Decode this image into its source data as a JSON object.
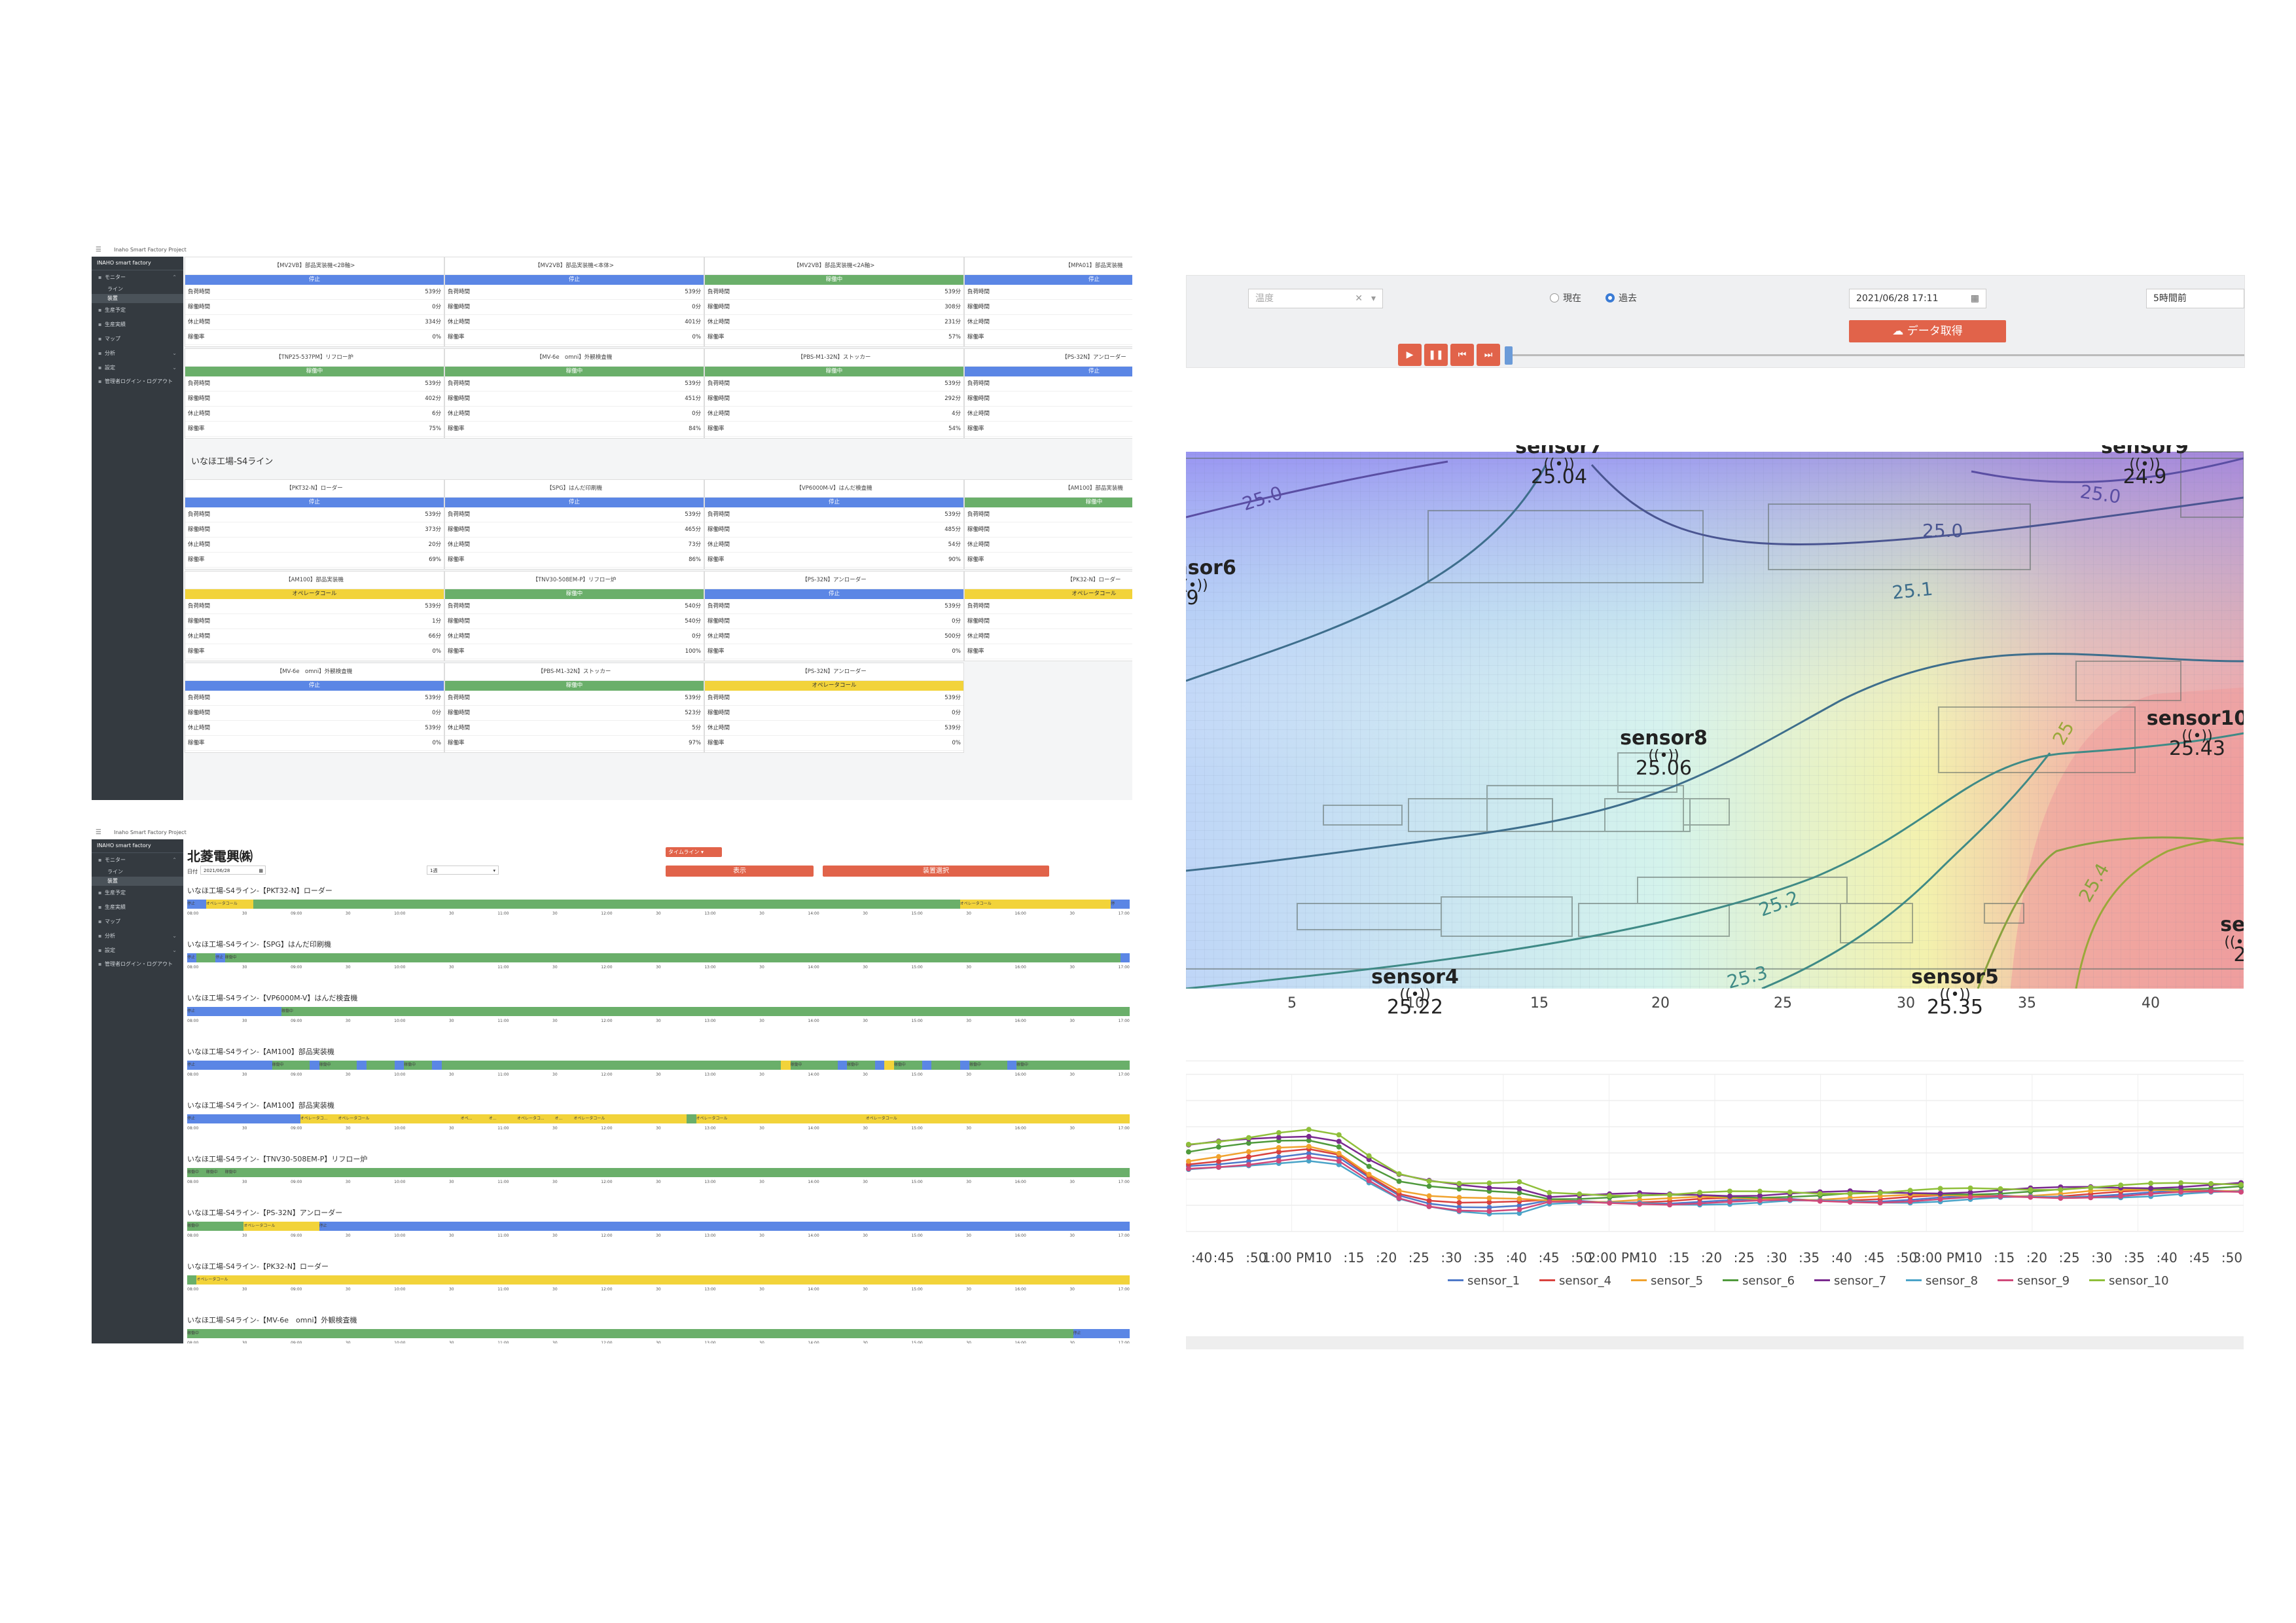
{
  "window1": {
    "title": "Inaho Smart Factory Project",
    "brand": "INAHO smart factory",
    "sidebar": [
      {
        "label": "モニター",
        "icon": "monitor-icon",
        "children": [
          {
            "label": "ライン"
          },
          {
            "label": "装置",
            "active": true
          }
        ]
      },
      {
        "label": "生産予定",
        "icon": "calendar-icon"
      },
      {
        "label": "生産実績",
        "icon": "chart-icon"
      },
      {
        "label": "マップ",
        "icon": "map-icon"
      },
      {
        "label": "分析",
        "icon": "analysis-icon"
      },
      {
        "label": "設定",
        "icon": "home-icon"
      },
      {
        "label": "管理者ログイン・ログアウト",
        "icon": "lock-icon"
      }
    ],
    "section_title": "いなほ工場-S4ライン",
    "cards_top": [
      {
        "name": "【MV2VB】部品実装機<2B軸>",
        "status": "停止",
        "kind": "stop",
        "rows": [
          [
            "負荷時間",
            "539分"
          ],
          [
            "稼働時間",
            "0分"
          ],
          [
            "休止時間",
            "334分"
          ],
          [
            "稼働率",
            "0%"
          ]
        ]
      },
      {
        "name": "【MV2VB】部品実装機<本体>",
        "status": "停止",
        "kind": "stop",
        "rows": [
          [
            "負荷時間",
            "539分"
          ],
          [
            "稼働時間",
            "0分"
          ],
          [
            "休止時間",
            "401分"
          ],
          [
            "稼働率",
            "0%"
          ]
        ]
      },
      {
        "name": "【MV2VB】部品実装機<2A軸>",
        "status": "稼働中",
        "kind": "run",
        "rows": [
          [
            "負荷時間",
            "539分"
          ],
          [
            "稼働時間",
            "308分"
          ],
          [
            "休止時間",
            "231分"
          ],
          [
            "稼働率",
            "57%"
          ]
        ]
      },
      {
        "name": "【MPA01】部品実装機",
        "status": "停止",
        "kind": "stop",
        "rows": [
          [
            "負荷時間",
            ""
          ],
          [
            "稼働時間",
            ""
          ],
          [
            "休止時間",
            ""
          ],
          [
            "稼働率",
            ""
          ]
        ]
      },
      {
        "name": "【TNP25-537PM】リフロー炉",
        "status": "稼働中",
        "kind": "run",
        "rows": [
          [
            "負荷時間",
            "539分"
          ],
          [
            "稼働時間",
            "402分"
          ],
          [
            "休止時間",
            "6分"
          ],
          [
            "稼働率",
            "75%"
          ]
        ]
      },
      {
        "name": "【MV-6e　omni】外観検査機",
        "status": "稼働中",
        "kind": "run",
        "rows": [
          [
            "負荷時間",
            "539分"
          ],
          [
            "稼働時間",
            "451分"
          ],
          [
            "休止時間",
            "0分"
          ],
          [
            "稼働率",
            "84%"
          ]
        ]
      },
      {
        "name": "【PBS-M1-32N】ストッカー",
        "status": "稼働中",
        "kind": "run",
        "rows": [
          [
            "負荷時間",
            "539分"
          ],
          [
            "稼働時間",
            "292分"
          ],
          [
            "休止時間",
            "4分"
          ],
          [
            "稼働率",
            "54%"
          ]
        ]
      },
      {
        "name": "【PS-32N】アンローダー",
        "status": "停止",
        "kind": "stop",
        "rows": [
          [
            "負荷時間",
            ""
          ],
          [
            "稼働時間",
            ""
          ],
          [
            "休止時間",
            ""
          ],
          [
            "稼働率",
            ""
          ]
        ]
      }
    ],
    "cards_bottom": [
      {
        "name": "【PKT32-N】ローダー",
        "status": "停止",
        "kind": "stop",
        "rows": [
          [
            "負荷時間",
            "539分"
          ],
          [
            "稼働時間",
            "373分"
          ],
          [
            "休止時間",
            "20分"
          ],
          [
            "稼働率",
            "69%"
          ]
        ]
      },
      {
        "name": "【SPG】はんだ印刷機",
        "status": "停止",
        "kind": "stop",
        "rows": [
          [
            "負荷時間",
            "539分"
          ],
          [
            "稼働時間",
            "465分"
          ],
          [
            "休止時間",
            "73分"
          ],
          [
            "稼働率",
            "86%"
          ]
        ]
      },
      {
        "name": "【VP6000M-V】はんだ検査機",
        "status": "停止",
        "kind": "stop",
        "rows": [
          [
            "負荷時間",
            "539分"
          ],
          [
            "稼働時間",
            "485分"
          ],
          [
            "休止時間",
            "54分"
          ],
          [
            "稼働率",
            "90%"
          ]
        ]
      },
      {
        "name": "【AM100】部品実装機",
        "status": "稼働中",
        "kind": "run",
        "rows": [
          [
            "負荷時間",
            ""
          ],
          [
            "稼働時間",
            ""
          ],
          [
            "休止時間",
            ""
          ],
          [
            "稼働率",
            ""
          ]
        ]
      },
      {
        "name": "【AM100】部品実装機",
        "status": "オペレータコール",
        "kind": "op",
        "rows": [
          [
            "負荷時間",
            "539分"
          ],
          [
            "稼働時間",
            "1分"
          ],
          [
            "休止時間",
            "66分"
          ],
          [
            "稼働率",
            "0%"
          ]
        ]
      },
      {
        "name": "【TNV30-508EM-P】リフロー炉",
        "status": "稼働中",
        "kind": "run",
        "rows": [
          [
            "負荷時間",
            "540分"
          ],
          [
            "稼働時間",
            "540分"
          ],
          [
            "休止時間",
            "0分"
          ],
          [
            "稼働率",
            "100%"
          ]
        ]
      },
      {
        "name": "【PS-32N】アンローダー",
        "status": "停止",
        "kind": "stop",
        "rows": [
          [
            "負荷時間",
            "539分"
          ],
          [
            "稼働時間",
            "0分"
          ],
          [
            "休止時間",
            "500分"
          ],
          [
            "稼働率",
            "0%"
          ]
        ]
      },
      {
        "name": "【PK32-N】ローダー",
        "status": "オペレータコール",
        "kind": "op",
        "rows": [
          [
            "負荷時間",
            ""
          ],
          [
            "稼働時間",
            ""
          ],
          [
            "休止時間",
            ""
          ],
          [
            "稼働率",
            ""
          ]
        ]
      },
      {
        "name": "【MV-6e　omni】外観検査機",
        "status": "停止",
        "kind": "stop",
        "rows": [
          [
            "負荷時間",
            "539分"
          ],
          [
            "稼働時間",
            "0分"
          ],
          [
            "休止時間",
            "539分"
          ],
          [
            "稼働率",
            "0%"
          ]
        ]
      },
      {
        "name": "【PBS-M1-32N】ストッカー",
        "status": "稼働中",
        "kind": "run",
        "rows": [
          [
            "負荷時間",
            "539分"
          ],
          [
            "稼働時間",
            "523分"
          ],
          [
            "休止時間",
            "5分"
          ],
          [
            "稼働率",
            "97%"
          ]
        ]
      },
      {
        "name": "【PS-32N】アンローダー",
        "status": "オペレータコール",
        "kind": "op",
        "rows": [
          [
            "負荷時間",
            "539分"
          ],
          [
            "稼働時間",
            "0分"
          ],
          [
            "休止時間",
            "539分"
          ],
          [
            "稼働率",
            "0%"
          ]
        ]
      }
    ]
  },
  "window2": {
    "title": "Inaho Smart Factory Project",
    "brand": "INAHO smart factory",
    "sidebar": [
      {
        "label": "モニター",
        "icon": "monitor-icon",
        "children": [
          {
            "label": "ライン"
          },
          {
            "label": "装置",
            "active": true
          }
        ]
      },
      {
        "label": "生産予定",
        "icon": "calendar-icon"
      },
      {
        "label": "生産実績",
        "icon": "chart-icon"
      },
      {
        "label": "マップ",
        "icon": "map-icon"
      },
      {
        "label": "分析",
        "icon": "analysis-icon"
      },
      {
        "label": "設定",
        "icon": "home-icon"
      },
      {
        "label": "管理者ログイン・ログアウト",
        "icon": "lock-icon"
      }
    ],
    "company": "北菱電興㈱",
    "date_label": "日付",
    "date_value": "2021/06/28",
    "range_value": "1週",
    "timeline_select": "タイムライン",
    "show_button": "表示",
    "select_device_button": "装置選択",
    "axis_ticks": [
      "08:00",
      "30",
      "09:00",
      "30",
      "10:00",
      "30",
      "11:00",
      "30",
      "12:00",
      "30",
      "13:00",
      "30",
      "14:00",
      "30",
      "15:00",
      "30",
      "16:00",
      "30",
      "17:00"
    ],
    "rows": [
      {
        "label": "いなほ工場-S4ライン-【PKT32-N】ローダー",
        "segments": [
          [
            "stop",
            2,
            "停止"
          ],
          [
            "op",
            5,
            "オペレータコール"
          ],
          [
            "run",
            75,
            ""
          ],
          [
            "op",
            16,
            "オペレータコール"
          ],
          [
            "stop",
            2,
            "停"
          ]
        ]
      },
      {
        "label": "いなほ工場-S4ライン-【SPG】はんだ印刷機",
        "segments": [
          [
            "stop",
            1,
            "停止"
          ],
          [
            "run",
            2,
            ""
          ],
          [
            "stop",
            1,
            "停止"
          ],
          [
            "run",
            95,
            "稼働中"
          ],
          [
            "stop",
            1,
            ""
          ]
        ]
      },
      {
        "label": "いなほ工場-S4ライン-【VP6000M-V】はんだ検査機",
        "segments": [
          [
            "stop",
            10,
            "停止"
          ],
          [
            "run",
            90,
            "稼働中"
          ]
        ]
      },
      {
        "label": "いなほ工場-S4ライン-【AM100】部品実装機",
        "segments": [
          [
            "stop",
            9,
            "停止"
          ],
          [
            "run",
            4,
            "稼働中"
          ],
          [
            "stop",
            1,
            ""
          ],
          [
            "run",
            4,
            "稼働中"
          ],
          [
            "stop",
            1,
            ""
          ],
          [
            "run",
            3,
            ""
          ],
          [
            "stop",
            1,
            ""
          ],
          [
            "run",
            3,
            "稼働中"
          ],
          [
            "stop",
            1,
            ""
          ],
          [
            "run",
            36,
            ""
          ],
          [
            "op",
            1,
            ""
          ],
          [
            "run",
            5,
            "稼働中"
          ],
          [
            "stop",
            1,
            ""
          ],
          [
            "run",
            3,
            "稼働中"
          ],
          [
            "stop",
            1,
            ""
          ],
          [
            "op",
            1,
            ""
          ],
          [
            "run",
            3,
            "稼働中"
          ],
          [
            "stop",
            1,
            ""
          ],
          [
            "run",
            3,
            ""
          ],
          [
            "stop",
            1,
            ""
          ],
          [
            "run",
            4,
            "稼働中"
          ],
          [
            "stop",
            1,
            ""
          ],
          [
            "run",
            12,
            "稼働中"
          ]
        ]
      },
      {
        "label": "いなほ工場-S4ライン-【AM100】部品実装機",
        "segments": [
          [
            "stop",
            12,
            "停止"
          ],
          [
            "op",
            4,
            "オペレータコ..."
          ],
          [
            "op",
            13,
            "オペレータコール"
          ],
          [
            "op",
            3,
            "オペ..."
          ],
          [
            "op",
            3,
            "オ..."
          ],
          [
            "op",
            4,
            "オペレータコ..."
          ],
          [
            "op",
            2,
            "オ..."
          ],
          [
            "op",
            12,
            "オペレータコール"
          ],
          [
            "run",
            1,
            ""
          ],
          [
            "op",
            18,
            "オペレータコール"
          ],
          [
            "op",
            28,
            "オペレータコール"
          ]
        ]
      },
      {
        "label": "いなほ工場-S4ライン-【TNV30-508EM-P】リフロー炉",
        "segments": [
          [
            "run",
            2,
            "稼働中"
          ],
          [
            "run",
            2,
            "稼働中"
          ],
          [
            "run",
            2,
            "稼働中"
          ],
          [
            "run",
            94,
            ""
          ]
        ]
      },
      {
        "label": "いなほ工場-S4ライン-【PS-32N】アンローダー",
        "segments": [
          [
            "run",
            6,
            "稼働中"
          ],
          [
            "op",
            8,
            "オペレータコール"
          ],
          [
            "stop",
            86,
            "停止"
          ]
        ]
      },
      {
        "label": "いなほ工場-S4ライン-【PK32-N】ローダー",
        "segments": [
          [
            "run",
            1,
            ""
          ],
          [
            "op",
            99,
            "オペレータコール"
          ]
        ]
      },
      {
        "label": "いなほ工場-S4ライン-【MV-6e　omni】外観検査機",
        "segments": [
          [
            "run",
            94,
            "稼働中"
          ],
          [
            "stop",
            6,
            "停止"
          ]
        ]
      }
    ]
  },
  "controls": {
    "sensor_select": "温度",
    "radio_current": "現在",
    "radio_past": "過去",
    "datetime": "2021/06/28 17:11",
    "time_range": "5時間前",
    "fetch_button": "データ取得",
    "play_buttons": [
      "▶",
      "❚❚",
      "⏮",
      "⏭"
    ]
  },
  "heatmap": {
    "x_ticks": [
      "5",
      "10",
      "15",
      "20",
      "25",
      "30",
      "35",
      "40"
    ],
    "sensors": [
      {
        "name": "sensor7",
        "value": "25.04"
      },
      {
        "name": "sensor9",
        "value": "24.9"
      },
      {
        "name": "sensor6",
        "value": "9"
      },
      {
        "name": "sensor8",
        "value": "25.06"
      },
      {
        "name": "sensor10",
        "value": "25.43"
      },
      {
        "name": "sensor4",
        "value": "25.22"
      },
      {
        "name": "sensor5",
        "value": "25.35"
      },
      {
        "name": "sen",
        "value": "2"
      }
    ],
    "contour_labels": [
      "25.0",
      "25.0",
      "25.0",
      "25.1",
      "25.2",
      "25.3",
      "25.4",
      "25"
    ],
    "colors": {
      "cool": "#b9a9f2",
      "mid": "#d8f7e7",
      "warm": "#f5f0a5",
      "hot": "#f0a3a0"
    }
  },
  "chart_data": {
    "type": "line",
    "x": [
      ":40",
      ":45",
      ":50",
      "1:00 PM",
      ":10",
      ":15",
      ":20",
      ":25",
      ":30",
      ":35",
      ":40",
      ":45",
      ":50",
      "2:00 PM",
      ":10",
      ":15",
      ":20",
      ":25",
      ":30",
      ":35",
      ":40",
      ":45",
      ":50",
      "3:00 PM",
      ":10",
      ":15",
      ":20",
      ":25",
      ":30",
      ":35",
      ":40",
      ":45",
      ":50"
    ],
    "x_ticks": [
      ":40",
      ":45",
      ":50",
      "1:00 PM",
      ":10",
      ":15",
      ":20",
      ":25",
      ":30",
      ":35",
      ":40",
      ":45",
      ":50",
      "2:00 PM",
      ":10",
      ":15",
      ":20",
      ":25",
      ":30",
      ":35",
      ":40",
      ":45",
      ":50",
      "3:00 PM",
      ":10",
      ":15",
      ":20",
      ":25",
      ":30",
      ":35",
      ":40",
      ":45",
      ":50"
    ],
    "series": [
      {
        "name": "sensor_1",
        "color": "#4e79c9"
      },
      {
        "name": "sensor_4",
        "color": "#d9423f"
      },
      {
        "name": "sensor_5",
        "color": "#f0a22e"
      },
      {
        "name": "sensor_6",
        "color": "#4f9a3c"
      },
      {
        "name": "sensor_7",
        "color": "#7a2a8f"
      },
      {
        "name": "sensor_8",
        "color": "#4aa3c8"
      },
      {
        "name": "sensor_9",
        "color": "#d0497a"
      },
      {
        "name": "sensor_10",
        "color": "#8fbf3a"
      }
    ],
    "grid": true,
    "legend": "bottom"
  }
}
